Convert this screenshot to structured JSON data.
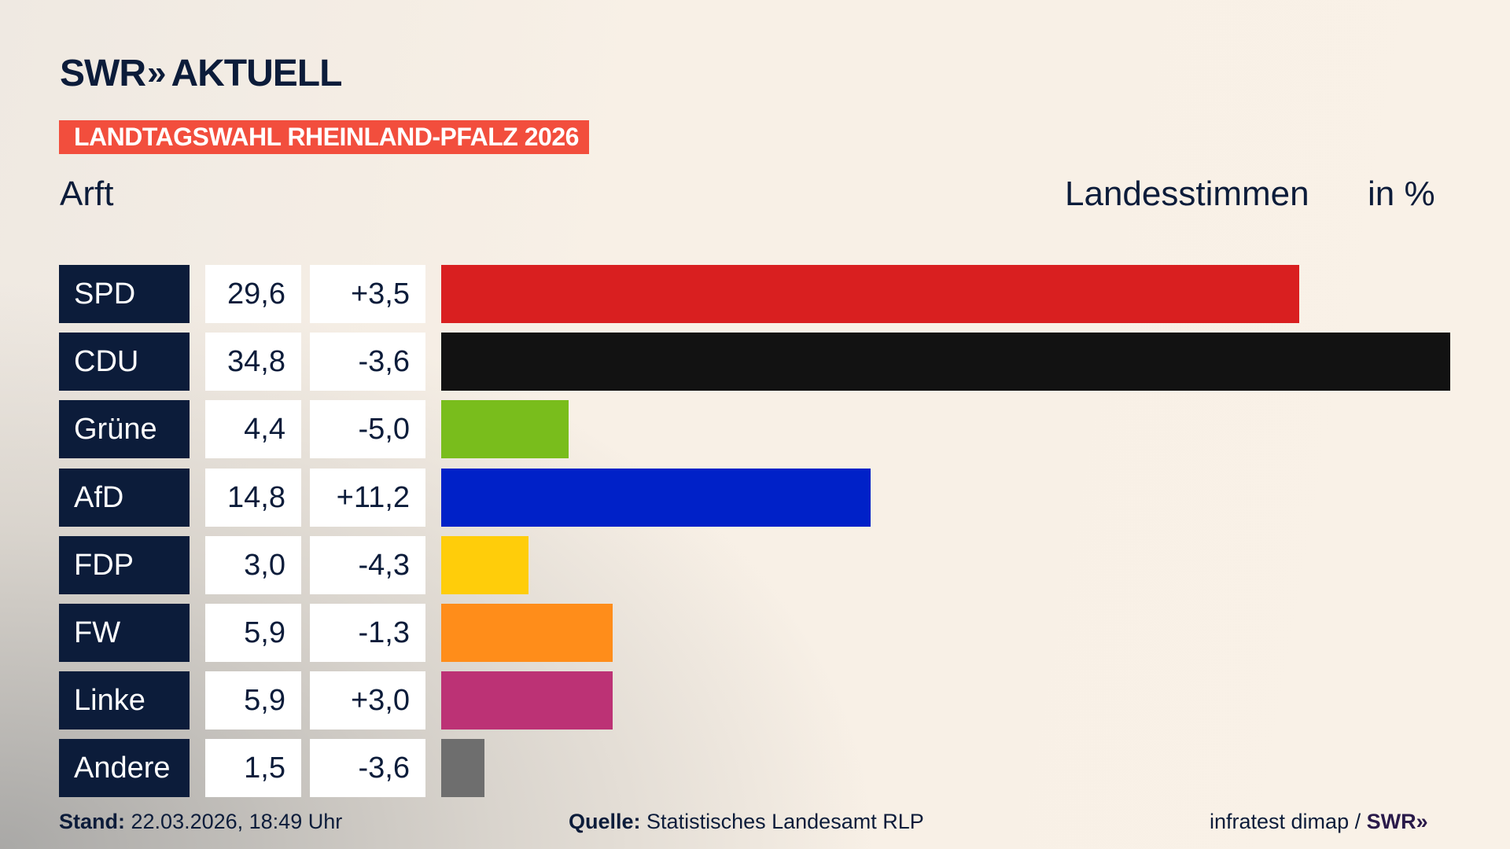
{
  "header": {
    "logo_text": "SWR",
    "logo_chevrons": "»",
    "logo_suffix": "AKTUELL",
    "banner": "LANDTAGSWAHL RHEINLAND-PFALZ 2026",
    "region": "Arft",
    "measure": "Landesstimmen",
    "unit": "in %"
  },
  "chart_data": {
    "type": "bar",
    "orientation": "horizontal",
    "title": "Landesstimmen",
    "unit": "in %",
    "categories": [
      "SPD",
      "CDU",
      "Grüne",
      "AfD",
      "FDP",
      "FW",
      "Linke",
      "Andere"
    ],
    "values": [
      29.6,
      34.8,
      4.4,
      14.8,
      3.0,
      5.9,
      5.9,
      1.5
    ],
    "value_labels": [
      "29,6",
      "34,8",
      "4,4",
      "14,8",
      "3,0",
      "5,9",
      "5,9",
      "1,5"
    ],
    "changes": [
      "+3,5",
      "-3,6",
      "-5,0",
      "+11,2",
      "-4,3",
      "-1,3",
      "+3,0",
      "-3,6"
    ],
    "colors": [
      "#d91f20",
      "#121212",
      "#79bd1c",
      "#0021c8",
      "#ffcd0a",
      "#ff8d1a",
      "#bc3275",
      "#6e6e6e"
    ]
  },
  "footer": {
    "stand_label": "Stand:",
    "stand_value": "22.03.2026, 18:49 Uhr",
    "source_label": "Quelle:",
    "source_value": "Statistisches Landesamt RLP",
    "credit": "infratest dimap /",
    "credit_logo": "SWR»"
  }
}
